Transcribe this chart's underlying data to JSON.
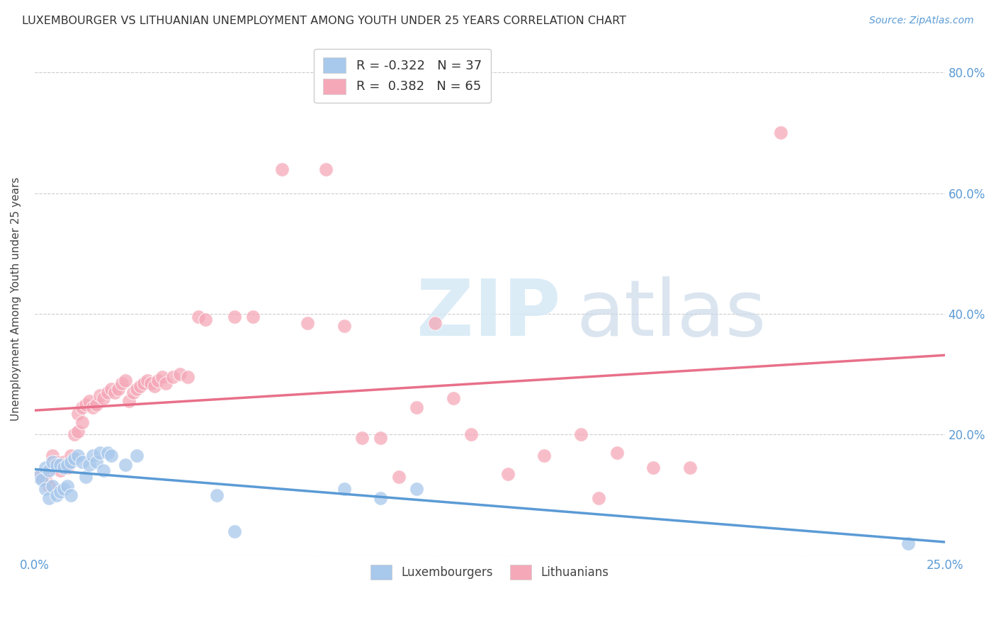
{
  "title": "LUXEMBOURGER VS LITHUANIAN UNEMPLOYMENT AMONG YOUTH UNDER 25 YEARS CORRELATION CHART",
  "source": "Source: ZipAtlas.com",
  "ylabel": "Unemployment Among Youth under 25 years",
  "xlim": [
    0.0,
    0.25
  ],
  "ylim": [
    0.0,
    0.85
  ],
  "color_lux": "#a8c8ec",
  "color_lit": "#f5a8b8",
  "color_lux_line": "#5b9bd5",
  "color_lit_line": "#e8708a",
  "lux_x": [
    0.001,
    0.002,
    0.003,
    0.003,
    0.004,
    0.004,
    0.005,
    0.005,
    0.006,
    0.006,
    0.007,
    0.007,
    0.008,
    0.008,
    0.009,
    0.009,
    0.01,
    0.01,
    0.011,
    0.012,
    0.013,
    0.014,
    0.015,
    0.016,
    0.017,
    0.018,
    0.019,
    0.02,
    0.021,
    0.025,
    0.028,
    0.05,
    0.055,
    0.085,
    0.095,
    0.105,
    0.24
  ],
  "lux_y": [
    0.13,
    0.125,
    0.11,
    0.145,
    0.095,
    0.14,
    0.115,
    0.155,
    0.1,
    0.15,
    0.105,
    0.15,
    0.11,
    0.145,
    0.115,
    0.15,
    0.1,
    0.155,
    0.16,
    0.165,
    0.155,
    0.13,
    0.15,
    0.165,
    0.155,
    0.17,
    0.14,
    0.17,
    0.165,
    0.15,
    0.165,
    0.1,
    0.04,
    0.11,
    0.095,
    0.11,
    0.02
  ],
  "lit_x": [
    0.001,
    0.002,
    0.003,
    0.004,
    0.005,
    0.005,
    0.006,
    0.007,
    0.008,
    0.009,
    0.01,
    0.011,
    0.012,
    0.012,
    0.013,
    0.013,
    0.014,
    0.015,
    0.016,
    0.017,
    0.018,
    0.019,
    0.02,
    0.021,
    0.022,
    0.023,
    0.024,
    0.025,
    0.026,
    0.027,
    0.028,
    0.029,
    0.03,
    0.031,
    0.032,
    0.033,
    0.034,
    0.035,
    0.036,
    0.038,
    0.04,
    0.042,
    0.045,
    0.047,
    0.055,
    0.06,
    0.068,
    0.075,
    0.08,
    0.085,
    0.09,
    0.095,
    0.1,
    0.105,
    0.11,
    0.115,
    0.12,
    0.13,
    0.14,
    0.15,
    0.155,
    0.16,
    0.17,
    0.18,
    0.205
  ],
  "lit_y": [
    0.13,
    0.13,
    0.125,
    0.115,
    0.145,
    0.165,
    0.155,
    0.14,
    0.155,
    0.145,
    0.165,
    0.2,
    0.205,
    0.235,
    0.22,
    0.245,
    0.25,
    0.255,
    0.245,
    0.25,
    0.265,
    0.26,
    0.27,
    0.275,
    0.27,
    0.275,
    0.285,
    0.29,
    0.255,
    0.27,
    0.275,
    0.28,
    0.285,
    0.29,
    0.285,
    0.28,
    0.29,
    0.295,
    0.285,
    0.295,
    0.3,
    0.295,
    0.395,
    0.39,
    0.395,
    0.395,
    0.64,
    0.385,
    0.64,
    0.38,
    0.195,
    0.195,
    0.13,
    0.245,
    0.385,
    0.26,
    0.2,
    0.135,
    0.165,
    0.2,
    0.095,
    0.17,
    0.145,
    0.145,
    0.7
  ]
}
